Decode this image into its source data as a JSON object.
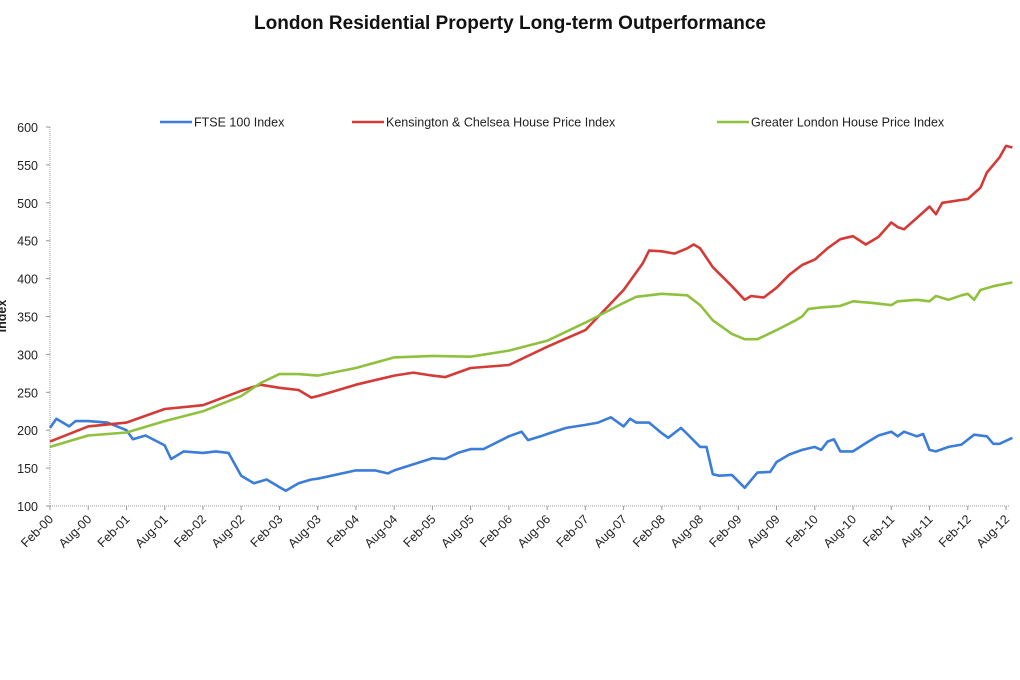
{
  "chart_data": {
    "type": "line",
    "title": "London Residential Property Long-term Outperformance",
    "xlabel": "",
    "ylabel": "Index",
    "ylim": [
      100,
      600
    ],
    "yticks": [
      100,
      150,
      200,
      250,
      300,
      350,
      400,
      450,
      500,
      550,
      600
    ],
    "xlim": [
      "2000-02",
      "2012-08"
    ],
    "xticks": [
      "Feb-00",
      "Aug-00",
      "Feb-01",
      "Aug-01",
      "Feb-02",
      "Aug-02",
      "Feb-03",
      "Aug-03",
      "Feb-04",
      "Aug-04",
      "Feb-05",
      "Aug-05",
      "Feb-06",
      "Aug-06",
      "Feb-07",
      "Aug-07",
      "Feb-08",
      "Aug-08",
      "Feb-09",
      "Aug-09",
      "Feb-10",
      "Aug-10",
      "Feb-11",
      "Aug-11",
      "Feb-12",
      "Aug-12"
    ],
    "grid": false,
    "legend": "top",
    "series": [
      {
        "name": "FTSE 100 Index",
        "color": "#3b7dd8",
        "x": [
          "2000-02",
          "2000-03",
          "2000-05",
          "2000-06",
          "2000-08",
          "2000-11",
          "2001-02",
          "2001-03",
          "2001-05",
          "2001-08",
          "2001-09",
          "2001-11",
          "2002-02",
          "2002-04",
          "2002-06",
          "2002-08",
          "2002-10",
          "2002-12",
          "2003-02",
          "2003-03",
          "2003-05",
          "2003-07",
          "2003-08",
          "2004-02",
          "2004-05",
          "2004-07",
          "2004-08",
          "2005-02",
          "2005-04",
          "2005-06",
          "2005-08",
          "2005-10",
          "2006-02",
          "2006-04",
          "2006-05",
          "2006-07",
          "2006-08",
          "2006-11",
          "2007-02",
          "2007-04",
          "2007-06",
          "2007-08",
          "2007-09",
          "2007-10",
          "2007-12",
          "2008-02",
          "2008-03",
          "2008-05",
          "2008-06",
          "2008-08",
          "2008-09",
          "2008-10",
          "2008-11",
          "2009-01",
          "2009-03",
          "2009-05",
          "2009-07",
          "2009-08",
          "2009-10",
          "2009-12",
          "2010-02",
          "2010-03",
          "2010-04",
          "2010-05",
          "2010-06",
          "2010-08",
          "2010-10",
          "2010-12",
          "2011-02",
          "2011-03",
          "2011-04",
          "2011-06",
          "2011-07",
          "2011-08",
          "2011-09",
          "2011-11",
          "2012-01",
          "2012-03",
          "2012-05",
          "2012-06",
          "2012-07",
          "2012-09"
        ],
        "values": [
          203,
          215,
          205,
          212,
          212,
          210,
          200,
          188,
          193,
          180,
          162,
          172,
          170,
          172,
          170,
          140,
          130,
          135,
          125,
          120,
          130,
          135,
          136,
          147,
          147,
          143,
          147,
          163,
          162,
          170,
          175,
          175,
          192,
          198,
          187,
          192,
          195,
          203,
          207,
          210,
          217,
          205,
          215,
          210,
          210,
          196,
          190,
          203,
          195,
          178,
          178,
          142,
          140,
          141,
          124,
          144,
          145,
          158,
          168,
          174,
          178,
          174,
          185,
          188,
          172,
          172,
          183,
          193,
          198,
          192,
          198,
          192,
          195,
          174,
          172,
          178,
          181,
          194,
          192,
          182,
          182,
          190
        ]
      },
      {
        "name": "Kensington & Chelsea House Price Index",
        "color": "#d43a36",
        "x": [
          "2000-02",
          "2000-08",
          "2001-02",
          "2001-08",
          "2002-02",
          "2002-08",
          "2002-11",
          "2003-02",
          "2003-05",
          "2003-07",
          "2003-08",
          "2004-02",
          "2004-08",
          "2004-11",
          "2005-02",
          "2005-04",
          "2005-08",
          "2006-02",
          "2006-08",
          "2007-02",
          "2007-08",
          "2007-11",
          "2007-12",
          "2008-02",
          "2008-04",
          "2008-06",
          "2008-07",
          "2008-08",
          "2008-10",
          "2009-01",
          "2009-03",
          "2009-04",
          "2009-06",
          "2009-08",
          "2009-10",
          "2009-12",
          "2010-02",
          "2010-04",
          "2010-06",
          "2010-08",
          "2010-10",
          "2010-12",
          "2011-02",
          "2011-03",
          "2011-04",
          "2011-06",
          "2011-08",
          "2011-09",
          "2011-10",
          "2012-02",
          "2012-04",
          "2012-05",
          "2012-07",
          "2012-08",
          "2012-09"
        ],
        "values": [
          185,
          205,
          210,
          228,
          233,
          252,
          260,
          256,
          253,
          243,
          245,
          260,
          272,
          276,
          272,
          270,
          282,
          286,
          310,
          332,
          385,
          420,
          437,
          436,
          433,
          440,
          445,
          440,
          415,
          390,
          372,
          377,
          375,
          388,
          405,
          418,
          425,
          440,
          452,
          456,
          445,
          455,
          474,
          468,
          465,
          480,
          495,
          485,
          500,
          505,
          520,
          540,
          560,
          575,
          573
        ]
      },
      {
        "name": "Greater London House Price Index",
        "color": "#8fc13e",
        "x": [
          "2000-02",
          "2000-08",
          "2001-02",
          "2001-08",
          "2002-02",
          "2002-08",
          "2002-11",
          "2003-02",
          "2003-05",
          "2003-08",
          "2004-02",
          "2004-08",
          "2005-02",
          "2005-08",
          "2006-02",
          "2006-08",
          "2007-02",
          "2007-08",
          "2007-10",
          "2008-02",
          "2008-06",
          "2008-08",
          "2008-10",
          "2009-01",
          "2009-03",
          "2009-05",
          "2009-08",
          "2009-11",
          "2009-12",
          "2010-01",
          "2010-03",
          "2010-06",
          "2010-08",
          "2010-11",
          "2011-02",
          "2011-03",
          "2011-06",
          "2011-08",
          "2011-09",
          "2011-11",
          "2012-01",
          "2012-02",
          "2012-03",
          "2012-04",
          "2012-06",
          "2012-09"
        ],
        "values": [
          178,
          193,
          197,
          212,
          225,
          245,
          262,
          274,
          274,
          272,
          282,
          296,
          298,
          297,
          305,
          318,
          342,
          368,
          376,
          380,
          378,
          365,
          345,
          327,
          320,
          320,
          332,
          345,
          350,
          360,
          362,
          364,
          370,
          368,
          365,
          370,
          372,
          370,
          377,
          372,
          378,
          380,
          372,
          385,
          390,
          395
        ]
      }
    ]
  }
}
